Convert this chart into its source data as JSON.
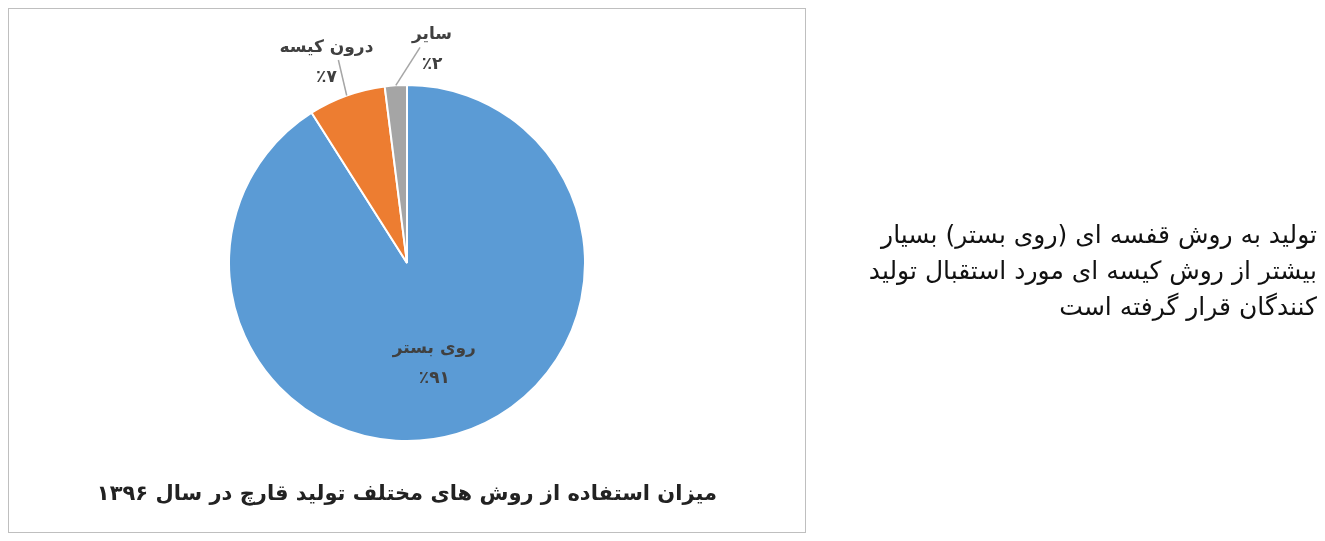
{
  "chart_data": {
    "type": "pie",
    "title": "میزان استفاده از روش های مختلف تولید قارچ در سال ۱۳۹۶",
    "categories": [
      "روی بستر",
      "درون کیسه",
      "سایر"
    ],
    "values": [
      91,
      7,
      2
    ],
    "colors": [
      "#5b9bd5",
      "#ed7d31",
      "#a5a5a5"
    ],
    "value_labels": [
      "٪۹۱",
      "٪۷",
      "٪۲"
    ],
    "annotations": [
      "تولید به روش قفسه ای (روی بستر) بسیار بیشتر از روش کیسه ای مورد استقبال تولید کنندگان قرار گرفته است"
    ],
    "legend": false
  }
}
